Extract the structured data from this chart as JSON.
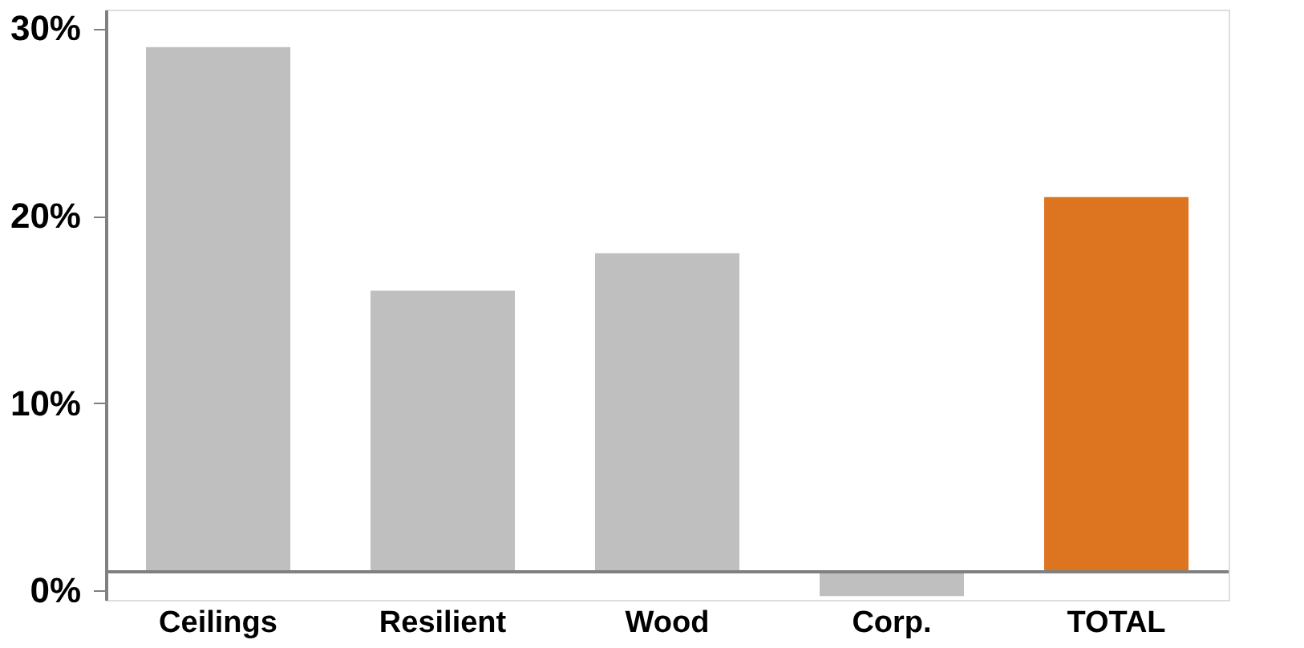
{
  "chart_data": {
    "type": "bar",
    "categories": [
      "Ceilings",
      "Resilient",
      "Wood",
      "Corp.",
      "TOTAL"
    ],
    "base": [
      1,
      1,
      1,
      1,
      1
    ],
    "values": [
      28,
      15,
      17,
      -1.3,
      20
    ],
    "colors": [
      "#bfbfbf",
      "#bfbfbf",
      "#bfbfbf",
      "#bfbfbf",
      "#dd7420"
    ],
    "ylim": [
      -0.5,
      31
    ],
    "yticks": [
      {
        "value": 0,
        "label": "0%"
      },
      {
        "value": 10,
        "label": "10%"
      },
      {
        "value": 20,
        "label": "20%"
      },
      {
        "value": 30,
        "label": "30%"
      }
    ],
    "ref_lines": [
      {
        "axis": "y",
        "value": 1,
        "color": "#808080"
      }
    ],
    "grid": false
  }
}
